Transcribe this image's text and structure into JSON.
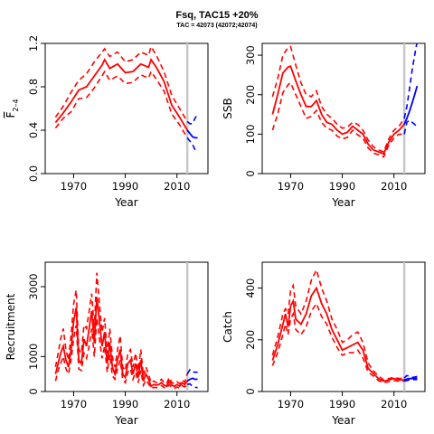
{
  "figure": {
    "title": "Fsq, TAC15 +20%",
    "subtitle": "TAC = 42073 (42072;42074)",
    "colors": {
      "historic": "#ff0000",
      "projection": "#0000ff",
      "marker": "#c8c8c8",
      "axis": "#000000"
    }
  },
  "chart_data": [
    {
      "type": "line",
      "id": "f",
      "ylabel_main": "F",
      "ylabel_sub": "2–4",
      "xlabel": "Year",
      "xlim": [
        1959,
        2022
      ],
      "ylim": [
        0,
        1.2
      ],
      "xticks": [
        1970,
        1990,
        2010
      ],
      "yticks": [
        0,
        0.4,
        0.8,
        1.2
      ],
      "ytick_labels": [
        "0.0",
        "0.4",
        "0.8",
        "1.2"
      ],
      "marker_year": 2014,
      "historic": {
        "x": [
          1963,
          1966,
          1969,
          1972,
          1975,
          1978,
          1981,
          1982,
          1984,
          1987,
          1990,
          1993,
          1996,
          1999,
          2000,
          2002,
          2005,
          2008,
          2011,
          2014
        ],
        "mid": [
          0.47,
          0.56,
          0.66,
          0.77,
          0.8,
          0.9,
          1.0,
          1.05,
          0.97,
          1.01,
          0.93,
          0.94,
          1.01,
          0.98,
          1.05,
          0.98,
          0.85,
          0.63,
          0.52,
          0.4
        ],
        "upper": [
          0.52,
          0.62,
          0.75,
          0.86,
          0.92,
          1.03,
          1.12,
          1.15,
          1.08,
          1.12,
          1.03,
          1.05,
          1.12,
          1.09,
          1.17,
          1.09,
          0.94,
          0.72,
          0.6,
          0.48
        ],
        "lower": [
          0.42,
          0.51,
          0.57,
          0.69,
          0.7,
          0.79,
          0.9,
          0.94,
          0.86,
          0.9,
          0.83,
          0.84,
          0.91,
          0.88,
          0.94,
          0.87,
          0.76,
          0.55,
          0.45,
          0.33
        ]
      },
      "projection": {
        "x": [
          2014,
          2015,
          2016,
          2017,
          2018
        ],
        "mid": [
          0.4,
          0.37,
          0.34,
          0.33,
          0.33
        ],
        "upper": [
          0.48,
          0.46,
          0.46,
          0.51,
          0.55
        ],
        "lower": [
          0.33,
          0.3,
          0.27,
          0.22,
          0.2
        ]
      }
    },
    {
      "type": "line",
      "id": "ssb",
      "ylabel_main": "SSB",
      "xlabel": "Year",
      "xlim": [
        1959,
        2022
      ],
      "ylim": [
        0,
        330
      ],
      "xticks": [
        1970,
        1990,
        2010
      ],
      "yticks": [
        0,
        100,
        200,
        300
      ],
      "ytick_labels": [
        "0",
        "100",
        "200",
        "300"
      ],
      "marker_year": 2014,
      "historic": {
        "x": [
          1963,
          1965,
          1967,
          1969,
          1970,
          1972,
          1974,
          1976,
          1978,
          1980,
          1982,
          1984,
          1986,
          1988,
          1990,
          1992,
          1994,
          1996,
          1998,
          2000,
          2002,
          2004,
          2006,
          2008,
          2010,
          2012,
          2014
        ],
        "mid": [
          150,
          200,
          255,
          270,
          272,
          235,
          200,
          170,
          170,
          185,
          150,
          130,
          125,
          110,
          100,
          105,
          120,
          110,
          100,
          75,
          60,
          55,
          50,
          80,
          100,
          110,
          125
        ],
        "upper": [
          195,
          240,
          300,
          320,
          322,
          275,
          230,
          200,
          195,
          210,
          170,
          150,
          140,
          125,
          115,
          118,
          130,
          125,
          110,
          85,
          68,
          60,
          55,
          88,
          110,
          120,
          140
        ],
        "lower": [
          110,
          150,
          205,
          225,
          230,
          200,
          170,
          140,
          145,
          160,
          130,
          115,
          110,
          95,
          88,
          92,
          110,
          98,
          90,
          65,
          52,
          48,
          42,
          72,
          90,
          100,
          100
        ]
      },
      "projection": {
        "x": [
          2014,
          2015,
          2016,
          2017,
          2018,
          2019
        ],
        "mid": [
          125,
          140,
          158,
          178,
          200,
          222
        ],
        "upper": [
          140,
          170,
          215,
          260,
          300,
          335
        ],
        "lower": [
          100,
          130,
          135,
          130,
          125,
          118
        ]
      }
    },
    {
      "type": "line",
      "id": "recruitment",
      "ylabel_main": "Recruitment",
      "xlabel": "Year",
      "xlim": [
        1959,
        2022
      ],
      "ylim": [
        0,
        3700
      ],
      "xticks": [
        1970,
        1990,
        2010
      ],
      "yticks": [
        0,
        1000,
        3000
      ],
      "ytick_labels": [
        "0",
        "1000",
        "3000"
      ],
      "marker_year": 2014,
      "historic": {
        "x": [
          1963,
          1964,
          1965,
          1966,
          1967,
          1968,
          1969,
          1970,
          1971,
          1972,
          1973,
          1974,
          1975,
          1976,
          1977,
          1978,
          1979,
          1980,
          1981,
          1982,
          1983,
          1984,
          1985,
          1986,
          1987,
          1988,
          1989,
          1990,
          1991,
          1992,
          1993,
          1994,
          1995,
          1996,
          1997,
          1998,
          1999,
          2000,
          2001,
          2002,
          2003,
          2004,
          2005,
          2006,
          2007,
          2008,
          2009,
          2010,
          2011,
          2012,
          2013,
          2014
        ],
        "mid": [
          500,
          800,
          1100,
          1300,
          900,
          700,
          1200,
          2000,
          2400,
          900,
          800,
          1500,
          1300,
          1800,
          2300,
          1400,
          2700,
          2000,
          1300,
          1700,
          800,
          1400,
          700,
          500,
          900,
          1200,
          500,
          400,
          800,
          900,
          500,
          800,
          400,
          900,
          300,
          500,
          350,
          150,
          200,
          180,
          200,
          250,
          180,
          150,
          300,
          180,
          150,
          200,
          150,
          250,
          200,
          300
        ],
        "upper": [
          700,
          1100,
          1500,
          1800,
          1200,
          900,
          1600,
          2500,
          2900,
          1200,
          1100,
          1900,
          1800,
          2300,
          2800,
          1800,
          3400,
          2500,
          1700,
          2100,
          1100,
          1800,
          1000,
          700,
          1200,
          1600,
          700,
          600,
          1100,
          1200,
          700,
          1100,
          600,
          1200,
          450,
          700,
          500,
          250,
          300,
          250,
          300,
          350,
          260,
          220,
          400,
          260,
          220,
          280,
          220,
          330,
          270,
          500
        ],
        "lower": [
          300,
          600,
          800,
          1000,
          650,
          500,
          900,
          1500,
          1900,
          650,
          600,
          1100,
          950,
          1300,
          1800,
          1000,
          2100,
          1500,
          950,
          1300,
          550,
          1050,
          450,
          350,
          650,
          900,
          350,
          250,
          550,
          650,
          350,
          550,
          250,
          600,
          180,
          330,
          220,
          90,
          120,
          110,
          120,
          170,
          110,
          90,
          200,
          110,
          90,
          130,
          90,
          170,
          130,
          200
        ]
      },
      "projection": {
        "x": [
          2014,
          2015,
          2016,
          2017,
          2018
        ],
        "mid": [
          300,
          350,
          380,
          350,
          350
        ],
        "upper": [
          500,
          620,
          560,
          550,
          550
        ],
        "lower": [
          200,
          220,
          150,
          120,
          110
        ]
      }
    },
    {
      "type": "line",
      "id": "catch",
      "ylabel_main": "Catch",
      "xlabel": "Year",
      "xlim": [
        1959,
        2022
      ],
      "ylim": [
        0,
        500
      ],
      "xticks": [
        1970,
        1990,
        2010
      ],
      "yticks": [
        0,
        200,
        400
      ],
      "ytick_labels": [
        "0",
        "200",
        "400"
      ],
      "marker_year": 2014,
      "historic": {
        "x": [
          1963,
          1965,
          1967,
          1968,
          1969,
          1970,
          1971,
          1972,
          1974,
          1976,
          1978,
          1980,
          1982,
          1984,
          1986,
          1988,
          1990,
          1992,
          1994,
          1996,
          1998,
          2000,
          2002,
          2004,
          2006,
          2008,
          2010,
          2012,
          2014
        ],
        "mid": [
          120,
          180,
          260,
          300,
          250,
          330,
          350,
          280,
          260,
          300,
          370,
          400,
          340,
          300,
          240,
          200,
          160,
          170,
          180,
          190,
          160,
          90,
          70,
          50,
          40,
          45,
          50,
          45,
          45
        ],
        "upper": [
          140,
          210,
          300,
          320,
          300,
          390,
          410,
          330,
          300,
          350,
          430,
          470,
          400,
          350,
          280,
          240,
          190,
          200,
          220,
          230,
          190,
          110,
          80,
          60,
          45,
          50,
          55,
          50,
          52
        ],
        "lower": [
          100,
          150,
          220,
          260,
          220,
          280,
          300,
          240,
          220,
          250,
          310,
          340,
          290,
          260,
          210,
          170,
          140,
          150,
          150,
          160,
          130,
          75,
          60,
          42,
          34,
          38,
          42,
          40,
          40
        ]
      },
      "projection": {
        "x": [
          2014,
          2015,
          2016,
          2017,
          2018,
          2019
        ],
        "mid": [
          45,
          48,
          50,
          50,
          51,
          52
        ],
        "upper": [
          52,
          62,
          58,
          55,
          56,
          58
        ],
        "lower": [
          40,
          42,
          45,
          45,
          46,
          46
        ]
      }
    }
  ]
}
